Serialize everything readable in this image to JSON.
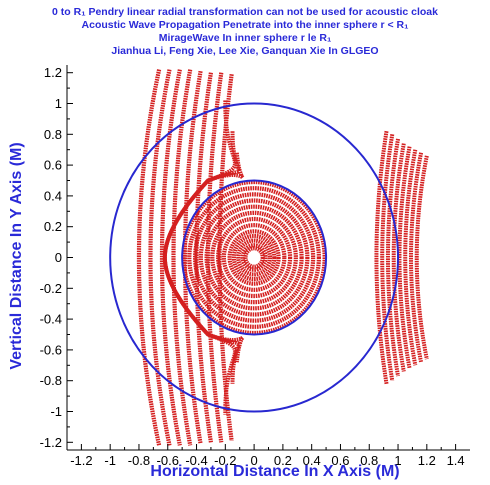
{
  "chart_data": {
    "type": "line",
    "title_lines": [
      "0 to R₁ Pendry linear radial transformation can not be used for acoustic cloak",
      "Acoustic Wave Propagation Penetrate into the inner sphere r < R₁",
      "MirageWave  In inner sphere r le R₁",
      "Jianhua Li, Feng Xie, Lee Xie, Ganquan Xie In GLGEO"
    ],
    "xlabel": "Horizontal Distance In X Axis (M)",
    "ylabel": "Vertical Distance In Y Axis (M)",
    "xlim": [
      -1.3,
      1.5
    ],
    "ylim": [
      -1.25,
      1.25
    ],
    "xticks": [
      -1.2,
      -1,
      -0.8,
      -0.6,
      -0.4,
      -0.2,
      0,
      0.2,
      0.4,
      0.6,
      0.8,
      1,
      1.2,
      1.4
    ],
    "xtick_labels": [
      "-1.2",
      "-1",
      "-0.8",
      "-0.6",
      "-0.4",
      "-0.2",
      "0",
      "0.2",
      "0.4",
      "0.6",
      "0.8",
      "1",
      "1.2",
      "1.4"
    ],
    "yticks": [
      1.2,
      1,
      0.8,
      0.6,
      0.4,
      0.2,
      0,
      -0.2,
      -0.4,
      -0.6,
      -0.8,
      -1,
      -1.2
    ],
    "ytick_labels": [
      "1.2",
      "1",
      "0.8",
      "0.6",
      "0.4",
      "0.2",
      "0",
      "-0.2",
      "-0.4",
      "-0.6",
      "-0.8",
      "-1",
      "-1.2"
    ],
    "circles": [
      {
        "cx": 0,
        "cy": 0,
        "r": 1.0,
        "color": "#2828d0"
      },
      {
        "cx": 0,
        "cy": 0,
        "r": 0.5,
        "color": "#2828d0"
      }
    ],
    "wavefront_color": "#d42020",
    "outer_wavefront_x_positions": [
      -0.8,
      -0.72,
      -0.64,
      -0.56,
      -0.48,
      -0.4,
      -0.32,
      -0.24
    ],
    "outer_wavefront_half_heights": [
      1.22,
      1.22,
      1.22,
      1.22,
      1.21,
      1.2,
      1.2,
      1.19
    ],
    "mid_curve_params": [
      {
        "x_mid": -0.16,
        "x_end": -0.2,
        "y_extent": 1.02
      },
      {
        "x_mid": -0.1,
        "x_end": -0.15,
        "y_extent": 0.82
      },
      {
        "x_mid": -0.04,
        "x_end": -0.12,
        "y_extent": 0.68
      }
    ],
    "inner_ring_radii": [
      0.49,
      0.45,
      0.41,
      0.37,
      0.33,
      0.29,
      0.25,
      0.21,
      0.17,
      0.14,
      0.11,
      0.08,
      0.06
    ],
    "right_wavefront_x_positions": [
      0.88,
      0.92,
      0.96,
      1.0,
      1.04,
      1.08,
      1.12,
      1.16
    ],
    "right_wavefront_half_heights": [
      0.82,
      0.8,
      0.77,
      0.74,
      0.72,
      0.7,
      0.68,
      0.66
    ],
    "grid": false,
    "legend": "none"
  }
}
